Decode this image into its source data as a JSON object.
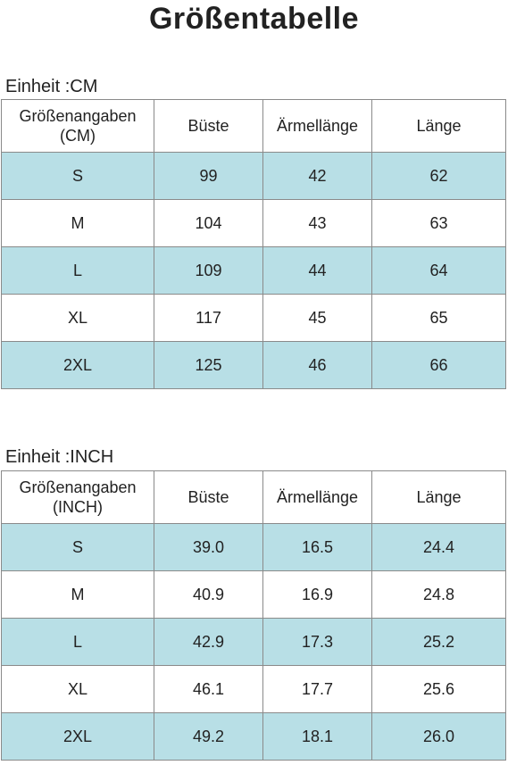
{
  "title": "Größentabelle",
  "tables": [
    {
      "unit": "Einheit :CM",
      "header": [
        "Größenangaben (CM)",
        "Büste",
        "Ärmellänge",
        "Länge"
      ],
      "rows": [
        [
          "S",
          "99",
          "42",
          "62"
        ],
        [
          "M",
          "104",
          "43",
          "63"
        ],
        [
          "L",
          "109",
          "44",
          "64"
        ],
        [
          "XL",
          "117",
          "45",
          "65"
        ],
        [
          "2XL",
          "125",
          "46",
          "66"
        ]
      ]
    },
    {
      "unit": "Einheit :INCH",
      "header": [
        "Größenangaben (INCH)",
        "Büste",
        "Ärmellänge",
        "Länge"
      ],
      "rows": [
        [
          "S",
          "39.0",
          "16.5",
          "24.4"
        ],
        [
          "M",
          "40.9",
          "16.9",
          "24.8"
        ],
        [
          "L",
          "42.9",
          "17.3",
          "25.2"
        ],
        [
          "XL",
          "46.1",
          "17.7",
          "25.6"
        ],
        [
          "2XL",
          "49.2",
          "18.1",
          "26.0"
        ]
      ]
    }
  ]
}
